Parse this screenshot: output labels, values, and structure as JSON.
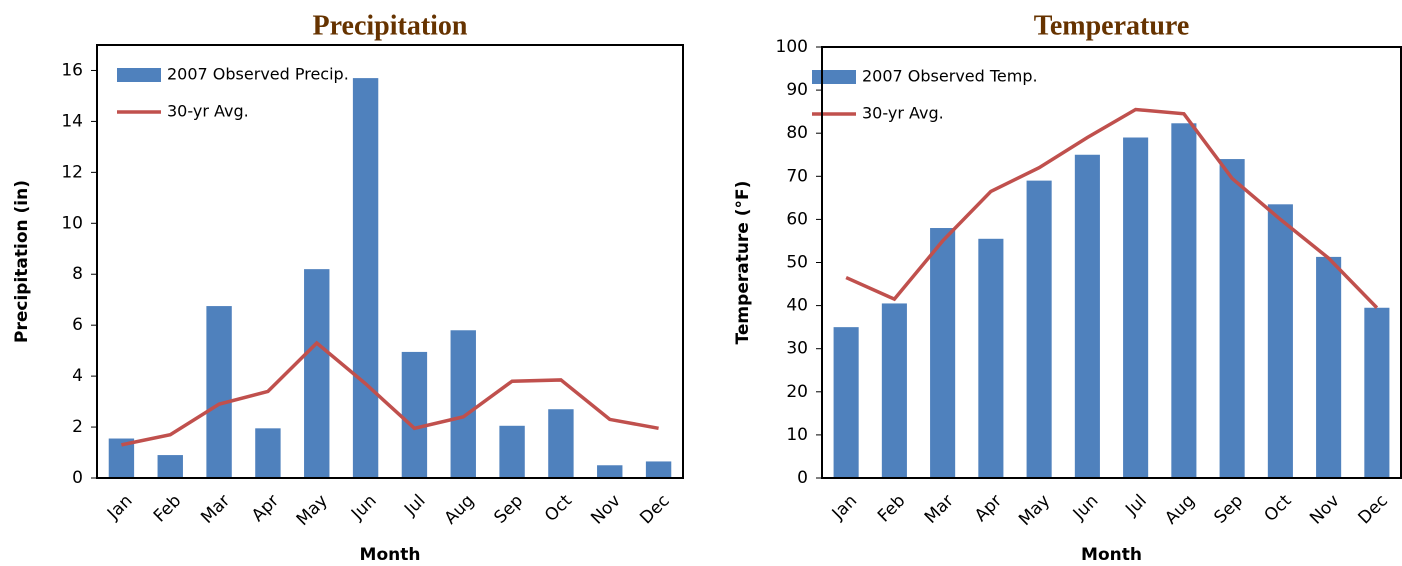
{
  "chart_data": [
    {
      "type": "bar_line",
      "title": "Precipitation",
      "x_label": "Month",
      "y_label": "Precipitation (in)",
      "categories": [
        "Jan",
        "Feb",
        "Mar",
        "Apr",
        "May",
        "Jun",
        "Jul",
        "Aug",
        "Sep",
        "Oct",
        "Nov",
        "Dec"
      ],
      "series": [
        {
          "name": "2007 Observed Precip.",
          "kind": "bar",
          "color": "#4f81bd",
          "values": [
            1.55,
            0.9,
            6.75,
            1.95,
            8.2,
            15.7,
            4.95,
            5.8,
            2.05,
            2.7,
            0.5,
            0.65
          ]
        },
        {
          "name": "30-yr Avg.",
          "kind": "line",
          "color": "#c0504d",
          "values": [
            1.3,
            1.7,
            2.9,
            3.4,
            5.3,
            3.7,
            1.95,
            2.4,
            3.8,
            3.85,
            2.3,
            1.95
          ]
        }
      ],
      "ylim": [
        0,
        17
      ],
      "yticks": [
        0,
        2,
        4,
        6,
        8,
        10,
        12,
        14,
        16
      ]
    },
    {
      "type": "bar_line",
      "title": "Temperature",
      "x_label": "Month",
      "y_label": "Temperature (°F)",
      "categories": [
        "Jan",
        "Feb",
        "Mar",
        "Apr",
        "May",
        "Jun",
        "Jul",
        "Aug",
        "Sep",
        "Oct",
        "Nov",
        "Dec"
      ],
      "series": [
        {
          "name": "2007 Observed Temp.",
          "kind": "bar",
          "color": "#4f81bd",
          "values": [
            35,
            40.5,
            58,
            55.5,
            69,
            75,
            79,
            82.3,
            74,
            63.5,
            51.3,
            39.5
          ]
        },
        {
          "name": "30-yr Avg.",
          "kind": "line",
          "color": "#c0504d",
          "values": [
            46.5,
            41.5,
            55,
            66.5,
            72,
            79,
            85.5,
            84.5,
            69.5,
            60,
            51,
            39.5
          ]
        }
      ],
      "ylim": [
        0,
        100
      ],
      "yticks": [
        0,
        10,
        20,
        30,
        40,
        50,
        60,
        70,
        80,
        90,
        100
      ]
    }
  ]
}
